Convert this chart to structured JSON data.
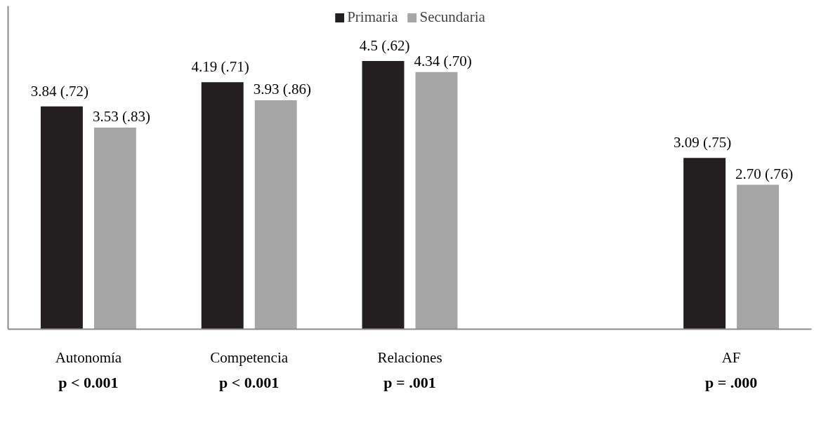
{
  "chart_data": {
    "type": "bar",
    "categories": [
      "Autonomía",
      "Competencia",
      "Relaciones",
      null,
      "AF"
    ],
    "series": [
      {
        "name": "Primaria",
        "color": "#231f20",
        "values": [
          3.84,
          4.19,
          4.5,
          null,
          3.09
        ],
        "value_labels": [
          "3.84 (.72)",
          "4.19 (.71)",
          "4.5 (.62)",
          null,
          "3.09 (.75)"
        ]
      },
      {
        "name": "Secundaria",
        "color": "#a6a6a7",
        "values": [
          3.53,
          3.93,
          4.34,
          null,
          2.7
        ],
        "value_labels": [
          "3.53 (.83)",
          "3.93 (.86)",
          "4.34 (.70)",
          null,
          "2.70 (.76)"
        ]
      }
    ],
    "ylim": [
      0.6,
      5.3
    ],
    "tick_labels": "x",
    "legend": "top",
    "annotations": [
      "p < 0.001",
      "p < 0.001",
      "p = .001",
      "p = .000"
    ]
  }
}
